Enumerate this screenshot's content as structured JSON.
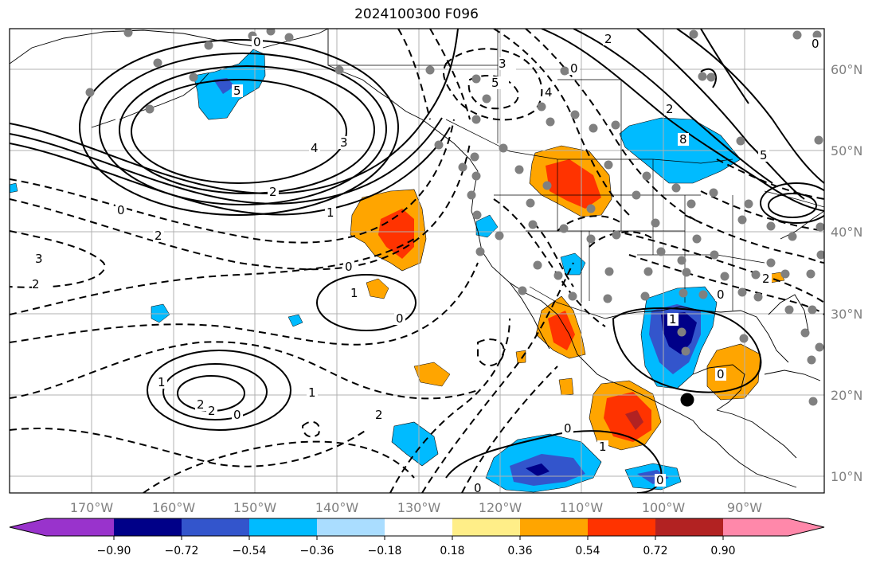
{
  "title": "2024100300 F096",
  "map": {
    "lon_labels": [
      "170°W",
      "160°W",
      "150°W",
      "140°W",
      "130°W",
      "120°W",
      "110°W",
      "100°W",
      "90°W"
    ],
    "lat_labels": [
      "60°N",
      "50°N",
      "40°N",
      "30°N",
      "20°N",
      "10°N"
    ],
    "contour_labels": [
      {
        "id": "c1",
        "text": "0"
      },
      {
        "id": "c2",
        "text": "5"
      },
      {
        "id": "c3",
        "text": "4"
      },
      {
        "id": "c4",
        "text": "3"
      },
      {
        "id": "c5",
        "text": "2"
      },
      {
        "id": "c6",
        "text": "1"
      },
      {
        "id": "c7",
        "text": "0"
      },
      {
        "id": "c8",
        "text": "2"
      },
      {
        "id": "c9",
        "text": "3"
      },
      {
        "id": "c10",
        "text": "2"
      },
      {
        "id": "c11",
        "text": "0"
      },
      {
        "id": "c12",
        "text": "1"
      },
      {
        "id": "c13",
        "text": "0"
      },
      {
        "id": "c14",
        "text": "1"
      },
      {
        "id": "c15",
        "text": "2"
      },
      {
        "id": "c16",
        "text": "2"
      },
      {
        "id": "c17",
        "text": "0"
      },
      {
        "id": "c18",
        "text": "1"
      },
      {
        "id": "c19",
        "text": "2"
      },
      {
        "id": "c20",
        "text": "0"
      },
      {
        "id": "c21",
        "text": "1"
      },
      {
        "id": "c22",
        "text": "0"
      },
      {
        "id": "c23",
        "text": "0"
      },
      {
        "id": "c24",
        "text": "1"
      },
      {
        "id": "c25",
        "text": "0"
      },
      {
        "id": "c26",
        "text": "2"
      },
      {
        "id": "c27",
        "text": "3"
      },
      {
        "id": "c28",
        "text": "5"
      },
      {
        "id": "c29",
        "text": "4"
      },
      {
        "id": "c30",
        "text": "0"
      },
      {
        "id": "c31",
        "text": "2"
      },
      {
        "id": "c32",
        "text": "8"
      },
      {
        "id": "c33",
        "text": "5"
      },
      {
        "id": "c34",
        "text": "2"
      },
      {
        "id": "c35",
        "text": "0"
      },
      {
        "id": "c36",
        "text": "0"
      }
    ]
  },
  "colorbar": {
    "tick_labels": [
      "−0.90",
      "−0.72",
      "−0.54",
      "−0.36",
      "−0.18",
      "0.18",
      "0.36",
      "0.54",
      "0.72",
      "0.90"
    ],
    "colors": [
      "#9933cc",
      "#000088",
      "#3355cc",
      "#00bbff",
      "#aaddff",
      "#ffffff",
      "#ffee88",
      "#ffa500",
      "#ff3300",
      "#b22222",
      "#ff88aa"
    ]
  },
  "colors": {
    "purple": "#9933cc",
    "navy": "#000088",
    "blue": "#3355cc",
    "cyan": "#00bbff",
    "lightblue": "#aaddff",
    "yellow": "#ffee88",
    "orange": "#ffa500",
    "redorange": "#ff3300",
    "darkred": "#b22222",
    "pink": "#ff88aa",
    "station": "#808080",
    "grid": "#b0b0b0"
  }
}
